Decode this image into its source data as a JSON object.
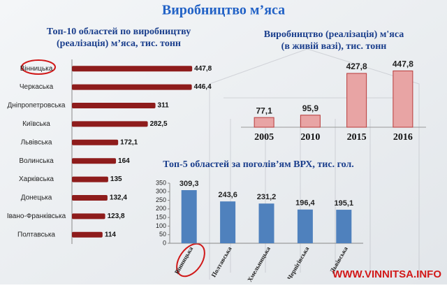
{
  "title": "Виробництво м’яса",
  "watermark": "WWW.VINNITSA.INFO",
  "chart_data": [
    {
      "type": "bar",
      "horizontal": true,
      "title": [
        "Топ-10 областей по виробництву",
        "(реалізація) м’яса, тис. тонн"
      ],
      "categories": [
        "Вінницька",
        "Черкаська",
        "Дніпропетровська",
        "Київська",
        "Львівська",
        "Волинська",
        "Харківська",
        "Донецька",
        "Івано-Франківська",
        "Полтавська"
      ],
      "values": [
        447.8,
        446.4,
        311,
        282.5,
        172.1,
        164,
        135,
        132.4,
        123.8,
        114
      ],
      "value_labels": [
        "447,8",
        "446,4",
        "311",
        "282,5",
        "172,1",
        "164",
        "135",
        "132,4",
        "123,8",
        "114"
      ],
      "color": "#8e1c1c",
      "xlim": [
        0,
        450
      ]
    },
    {
      "type": "bar",
      "title": [
        "Виробництво (реалізація) м'яса",
        "(в живій вазі), тис. тонн"
      ],
      "categories": [
        "2005",
        "2010",
        "2015",
        "2016"
      ],
      "values": [
        77.1,
        95.9,
        427.8,
        447.8
      ],
      "value_labels": [
        "77,1",
        "95,9",
        "427,8",
        "447,8"
      ],
      "color": "#e8a4a4",
      "ylim": [
        0,
        450
      ]
    },
    {
      "type": "bar",
      "title": [
        "Топ-5 областей за поголів’ям ВРХ, тис. гол."
      ],
      "categories": [
        "Вінницька",
        "Полтавська",
        "Хмельницька",
        "Чернігівська",
        "Львівська"
      ],
      "values": [
        309.3,
        243.6,
        231.2,
        196.4,
        195.1
      ],
      "value_labels": [
        "309,3",
        "243,6",
        "231,2",
        "196,4",
        "195,1"
      ],
      "color": "#4f81bd",
      "ylim": [
        0,
        350
      ],
      "yticks": [
        0,
        50,
        100,
        150,
        200,
        250,
        300,
        350
      ]
    }
  ]
}
